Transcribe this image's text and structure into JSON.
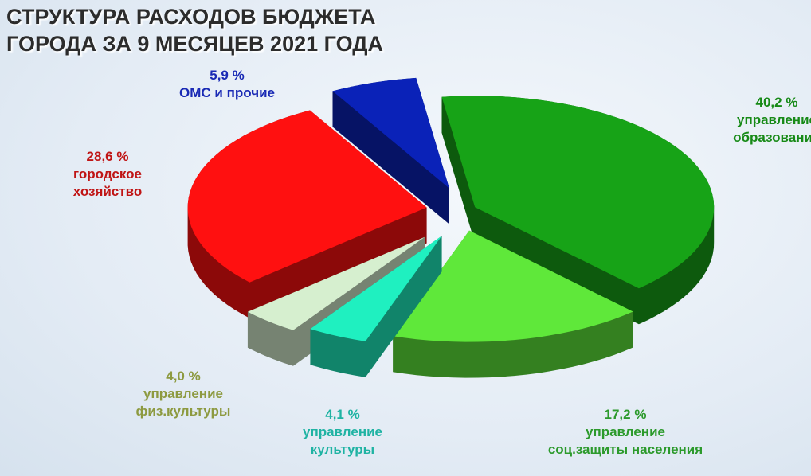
{
  "chart_data": {
    "type": "pie",
    "title": "СТРУКТУРА РАСХОДОВ БЮДЖЕТА\nГОРОДА ЗА  9 МЕСЯЦЕВ 2021 ГОДА",
    "categories": [
      "управление\nобразования",
      "управление\nсоц.защиты населения",
      "управление\nкультуры",
      "управление\nфиз.культуры",
      "городское\nхозяйство",
      "ОМС и прочие"
    ],
    "values": [
      40.2,
      17.2,
      4.1,
      4.0,
      28.6,
      5.9
    ],
    "value_labels": [
      "40,2 %",
      "17,2 %",
      "4,1 %",
      "4,0 %",
      "28,6 %",
      "5,9 %"
    ],
    "colors": [
      "#17a317",
      "#5fe83a",
      "#1ff0c0",
      "#d6efcf",
      "#ff1010",
      "#0a22b8"
    ],
    "label_colors": [
      "#178a17",
      "#2c9a2c",
      "#1fb3a3",
      "#8d9a40",
      "#c01515",
      "#1a2ab5"
    ]
  }
}
